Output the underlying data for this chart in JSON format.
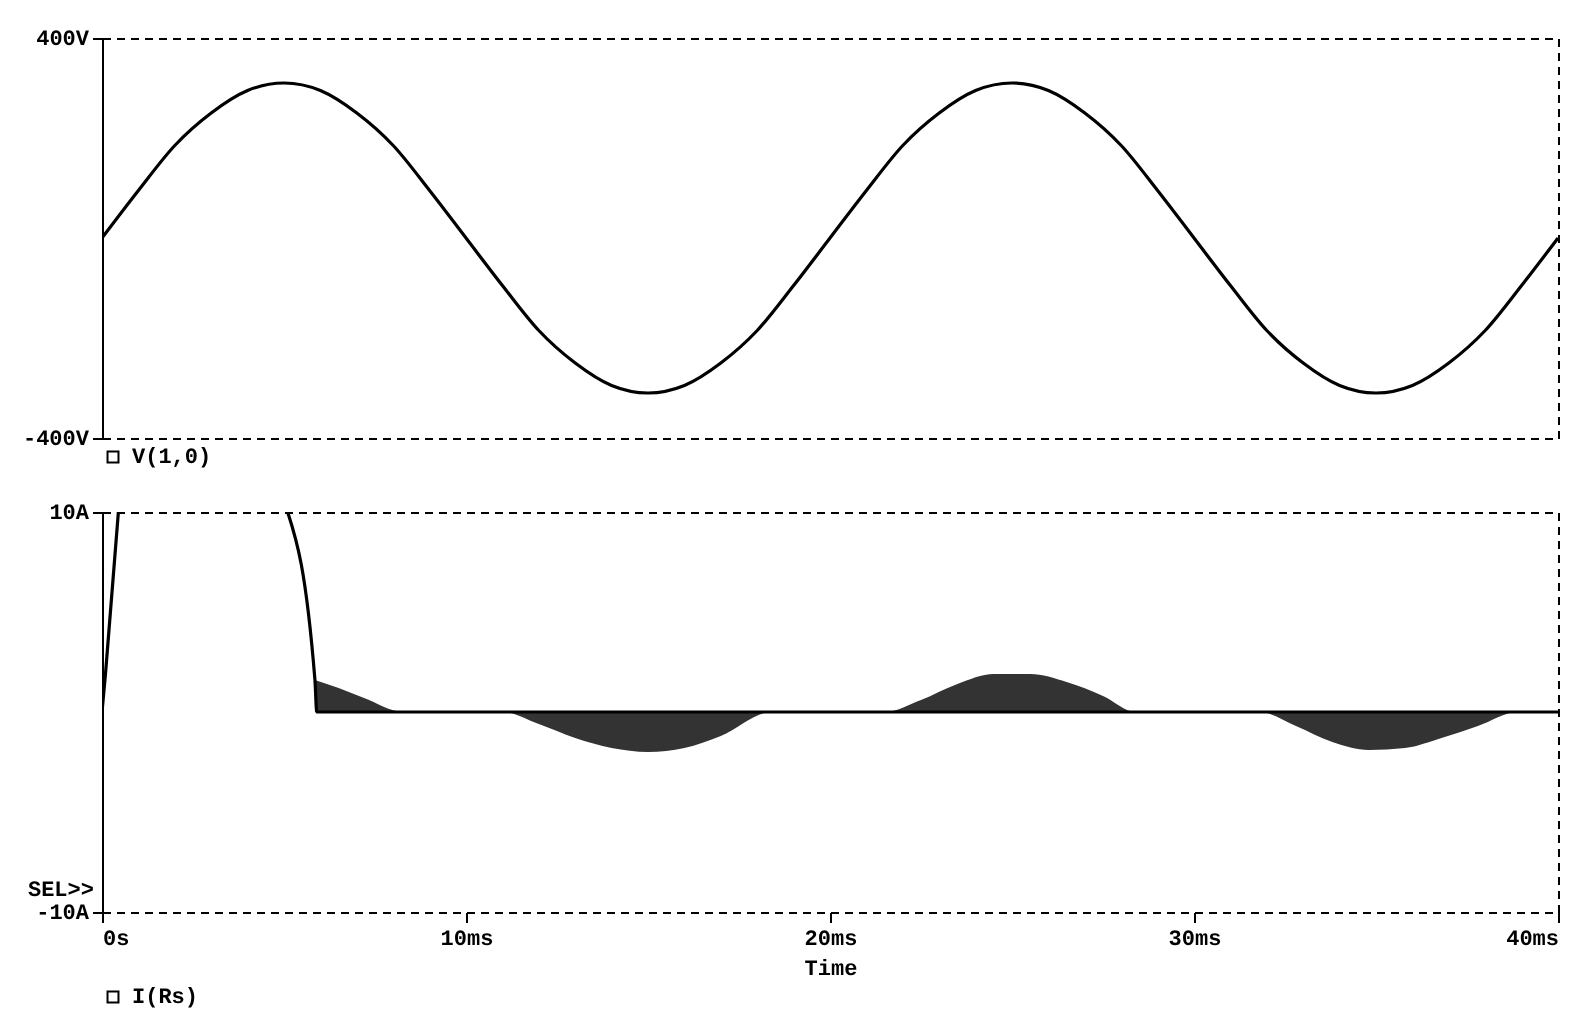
{
  "chart_data": [
    {
      "type": "line",
      "legend": "bottom",
      "tick_labels": "y",
      "xlim": [
        0,
        40
      ],
      "ylim": [
        -400,
        400
      ],
      "yticks": [
        {
          "value": 400,
          "label": "400V"
        },
        {
          "value": -400,
          "label": "-400V"
        }
      ],
      "x": [
        0,
        1,
        2,
        3,
        4,
        5,
        6,
        7,
        8,
        9,
        10,
        11,
        12,
        13,
        14,
        15,
        16,
        17,
        18,
        19,
        20,
        21,
        22,
        23,
        24,
        25,
        26,
        27,
        28,
        29,
        30,
        31,
        32,
        33,
        34,
        35,
        36,
        37,
        38,
        39,
        40
      ],
      "series": [
        {
          "name": "V(1,0)",
          "color": "#000000",
          "values": [
            0,
            95,
            185,
            250,
            295,
            310,
            295,
            250,
            185,
            95,
            0,
            -95,
            -185,
            -250,
            -295,
            -310,
            -295,
            -250,
            -185,
            -95,
            0,
            95,
            185,
            250,
            295,
            310,
            295,
            250,
            185,
            95,
            0,
            -95,
            -185,
            -250,
            -295,
            -310,
            -295,
            -250,
            -185,
            -95,
            0
          ]
        }
      ]
    },
    {
      "type": "line",
      "legend": "bottom",
      "xlabel": "Time",
      "xlim": [
        0,
        40
      ],
      "ylim": [
        -10,
        10
      ],
      "xticks": [
        {
          "value": 0,
          "label": "0s"
        },
        {
          "value": 10,
          "label": "10ms"
        },
        {
          "value": 20,
          "label": "20ms"
        },
        {
          "value": 30,
          "label": "30ms"
        },
        {
          "value": 40,
          "label": "40ms"
        }
      ],
      "yticks": [
        {
          "value": 10,
          "label": "10A"
        },
        {
          "value": -10,
          "label": "-10A"
        }
      ],
      "annotations": [
        "SEL>>"
      ],
      "series": [
        {
          "type": "area",
          "color": "#333333",
          "x": [
            5.85,
            6.5,
            7.2,
            8.3,
            11,
            12,
            13,
            14,
            15,
            16,
            17,
            18.4,
            21.5,
            22.5,
            23.5,
            24.5,
            25.5,
            26.5,
            27.5,
            28.4,
            31.8,
            32.8,
            33.8,
            34.8,
            35.8,
            36.8,
            37.8,
            38.9,
            40
          ],
          "values": [
            1.6,
            1.2,
            0.7,
            0,
            0,
            -0.6,
            -1.3,
            -1.8,
            -2,
            -1.8,
            -1.2,
            0,
            0,
            0.6,
            1.4,
            1.9,
            1.9,
            1.5,
            0.8,
            0,
            0,
            -0.7,
            -1.5,
            -1.9,
            -1.8,
            -1.3,
            -0.7,
            0,
            0
          ]
        },
        {
          "name": "I(Rs)",
          "color": "#000000",
          "x": [
            0,
            0.1,
            0.45,
            2.8,
            5.1,
            5.85,
            5.9,
            40
          ],
          "values": [
            0,
            2,
            10,
            null,
            10,
            1.6,
            0,
            0
          ]
        }
      ]
    }
  ]
}
